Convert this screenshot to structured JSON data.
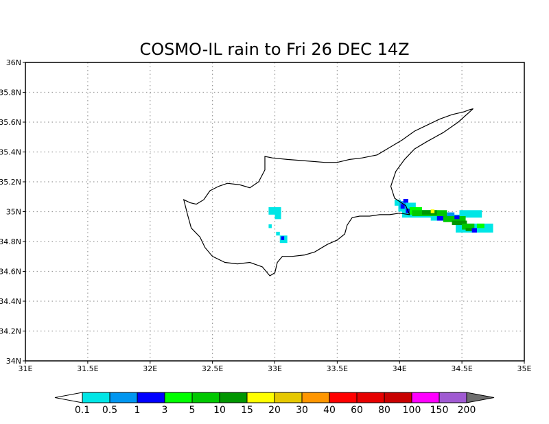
{
  "title": "COSMO-IL rain to Fri 26 DEC 14Z",
  "map": {
    "lon_range": [
      31,
      35
    ],
    "lat_range": [
      34,
      36
    ],
    "x_ticks": [
      {
        "value": 31,
        "label": "31E"
      },
      {
        "value": 31.5,
        "label": "31.5E"
      },
      {
        "value": 32,
        "label": "32E"
      },
      {
        "value": 32.5,
        "label": "32.5E"
      },
      {
        "value": 33,
        "label": "33E"
      },
      {
        "value": 33.5,
        "label": "33.5E"
      },
      {
        "value": 34,
        "label": "34E"
      },
      {
        "value": 34.5,
        "label": "34.5E"
      },
      {
        "value": 35,
        "label": "35E"
      }
    ],
    "y_ticks": [
      {
        "value": 34,
        "label": "34N"
      },
      {
        "value": 34.2,
        "label": "34.2N"
      },
      {
        "value": 34.4,
        "label": "34.4N"
      },
      {
        "value": 34.6,
        "label": "34.6N"
      },
      {
        "value": 34.8,
        "label": "34.8N"
      },
      {
        "value": 35,
        "label": "35N"
      },
      {
        "value": 35.2,
        "label": "35.2N"
      },
      {
        "value": 35.4,
        "label": "35.4N"
      },
      {
        "value": 35.6,
        "label": "35.6N"
      },
      {
        "value": 35.8,
        "label": "35.8N"
      },
      {
        "value": 36,
        "label": "36N"
      }
    ],
    "grid": true,
    "coastline": [
      [
        32.27,
        35.08
      ],
      [
        32.32,
        35.06
      ],
      [
        32.37,
        35.05
      ],
      [
        32.43,
        35.08
      ],
      [
        32.48,
        35.14
      ],
      [
        32.55,
        35.17
      ],
      [
        32.62,
        35.19
      ],
      [
        32.72,
        35.18
      ],
      [
        32.8,
        35.16
      ],
      [
        32.87,
        35.2
      ],
      [
        32.92,
        35.28
      ],
      [
        32.92,
        35.37
      ],
      [
        32.98,
        35.36
      ],
      [
        33.1,
        35.35
      ],
      [
        33.25,
        35.34
      ],
      [
        33.4,
        35.33
      ],
      [
        33.5,
        35.33
      ],
      [
        33.6,
        35.35
      ],
      [
        33.7,
        35.36
      ],
      [
        33.82,
        35.38
      ],
      [
        33.92,
        35.43
      ],
      [
        34.02,
        35.48
      ],
      [
        34.12,
        35.54
      ],
      [
        34.22,
        35.58
      ],
      [
        34.32,
        35.62
      ],
      [
        34.42,
        35.65
      ],
      [
        34.52,
        35.67
      ],
      [
        34.55,
        35.68
      ],
      [
        34.59,
        35.69
      ],
      [
        34.55,
        35.66
      ],
      [
        34.47,
        35.6
      ],
      [
        34.35,
        35.53
      ],
      [
        34.22,
        35.47
      ],
      [
        34.12,
        35.42
      ],
      [
        34.04,
        35.35
      ],
      [
        33.97,
        35.27
      ],
      [
        33.93,
        35.17
      ],
      [
        33.96,
        35.09
      ],
      [
        34.05,
        35.04
      ],
      [
        34.08,
        34.98
      ],
      [
        34.0,
        34.99
      ],
      [
        33.92,
        34.98
      ],
      [
        33.84,
        34.98
      ],
      [
        33.76,
        34.97
      ],
      [
        33.68,
        34.97
      ],
      [
        33.62,
        34.96
      ],
      [
        33.58,
        34.91
      ],
      [
        33.56,
        34.85
      ],
      [
        33.5,
        34.81
      ],
      [
        33.42,
        34.78
      ],
      [
        33.32,
        34.73
      ],
      [
        33.24,
        34.71
      ],
      [
        33.14,
        34.7
      ],
      [
        33.06,
        34.7
      ],
      [
        33.02,
        34.66
      ],
      [
        33.0,
        34.59
      ],
      [
        32.96,
        34.57
      ],
      [
        32.9,
        34.63
      ],
      [
        32.8,
        34.66
      ],
      [
        32.7,
        34.65
      ],
      [
        32.6,
        34.66
      ],
      [
        32.5,
        34.7
      ],
      [
        32.44,
        34.76
      ],
      [
        32.4,
        34.83
      ],
      [
        32.33,
        34.89
      ],
      [
        32.3,
        34.98
      ],
      [
        32.27,
        35.08
      ]
    ],
    "rain_cells": [
      {
        "lon": 32.95,
        "lat": 34.98,
        "w": 0.1,
        "h": 0.05,
        "class": 0
      },
      {
        "lon": 33.0,
        "lat": 34.95,
        "w": 0.05,
        "h": 0.05,
        "class": 0
      },
      {
        "lon": 32.95,
        "lat": 34.89,
        "w": 0.025,
        "h": 0.025,
        "class": 0
      },
      {
        "lon": 33.01,
        "lat": 34.84,
        "w": 0.03,
        "h": 0.025,
        "class": 0
      },
      {
        "lon": 33.04,
        "lat": 34.79,
        "w": 0.06,
        "h": 0.05,
        "class": 0
      },
      {
        "lon": 33.05,
        "lat": 34.81,
        "w": 0.025,
        "h": 0.025,
        "class": 2
      },
      {
        "lon": 33.96,
        "lat": 35.04,
        "w": 0.05,
        "h": 0.04,
        "class": 0
      },
      {
        "lon": 33.99,
        "lat": 35.0,
        "w": 0.14,
        "h": 0.06,
        "class": 0
      },
      {
        "lon": 34.02,
        "lat": 34.96,
        "w": 0.3,
        "h": 0.05,
        "class": 0
      },
      {
        "lon": 34.25,
        "lat": 34.94,
        "w": 0.25,
        "h": 0.04,
        "class": 0
      },
      {
        "lon": 34.45,
        "lat": 34.86,
        "w": 0.3,
        "h": 0.06,
        "class": 0
      },
      {
        "lon": 34.48,
        "lat": 34.96,
        "w": 0.18,
        "h": 0.05,
        "class": 0
      },
      {
        "lon": 34.0,
        "lat": 35.02,
        "w": 0.05,
        "h": 0.05,
        "class": 1
      },
      {
        "lon": 34.03,
        "lat": 35.06,
        "w": 0.04,
        "h": 0.025,
        "class": 2
      },
      {
        "lon": 34.01,
        "lat": 35.02,
        "w": 0.03,
        "h": 0.03,
        "class": 2
      },
      {
        "lon": 34.05,
        "lat": 34.99,
        "w": 0.05,
        "h": 0.03,
        "class": 2
      },
      {
        "lon": 34.08,
        "lat": 34.98,
        "w": 0.1,
        "h": 0.05,
        "class": 3
      },
      {
        "lon": 34.1,
        "lat": 34.97,
        "w": 0.28,
        "h": 0.04,
        "class": 4
      },
      {
        "lon": 34.18,
        "lat": 34.98,
        "w": 0.12,
        "h": 0.03,
        "class": 5
      },
      {
        "lon": 34.3,
        "lat": 34.94,
        "w": 0.08,
        "h": 0.03,
        "class": 2
      },
      {
        "lon": 34.35,
        "lat": 34.93,
        "w": 0.18,
        "h": 0.04,
        "class": 4
      },
      {
        "lon": 34.42,
        "lat": 34.91,
        "w": 0.12,
        "h": 0.03,
        "class": 5
      },
      {
        "lon": 34.5,
        "lat": 34.88,
        "w": 0.1,
        "h": 0.04,
        "class": 4
      },
      {
        "lon": 34.53,
        "lat": 34.87,
        "w": 0.05,
        "h": 0.02,
        "class": 5
      },
      {
        "lon": 34.58,
        "lat": 34.86,
        "w": 0.04,
        "h": 0.03,
        "class": 2
      },
      {
        "lon": 34.62,
        "lat": 34.89,
        "w": 0.06,
        "h": 0.03,
        "class": 3
      },
      {
        "lon": 34.25,
        "lat": 34.99,
        "w": 0.03,
        "h": 0.025,
        "class": 6
      },
      {
        "lon": 34.44,
        "lat": 34.95,
        "w": 0.04,
        "h": 0.025,
        "class": 2
      },
      {
        "lon": 34.38,
        "lat": 34.97,
        "w": 0.06,
        "h": 0.025,
        "class": 1
      }
    ]
  },
  "colorbar": {
    "under_color": "#ffffff",
    "over_color": "#6e6e6e",
    "colors": [
      "#00e6e6",
      "#0096f0",
      "#0000ff",
      "#00ff00",
      "#00c800",
      "#009600",
      "#ffff00",
      "#e6c800",
      "#ff9600",
      "#ff0000",
      "#e60000",
      "#c80000",
      "#ff00ff",
      "#a05ad2"
    ],
    "labels": [
      "0.1",
      "0.5",
      "1",
      "3",
      "5",
      "10",
      "15",
      "20",
      "30",
      "40",
      "60",
      "80",
      "100",
      "150",
      "200"
    ]
  }
}
